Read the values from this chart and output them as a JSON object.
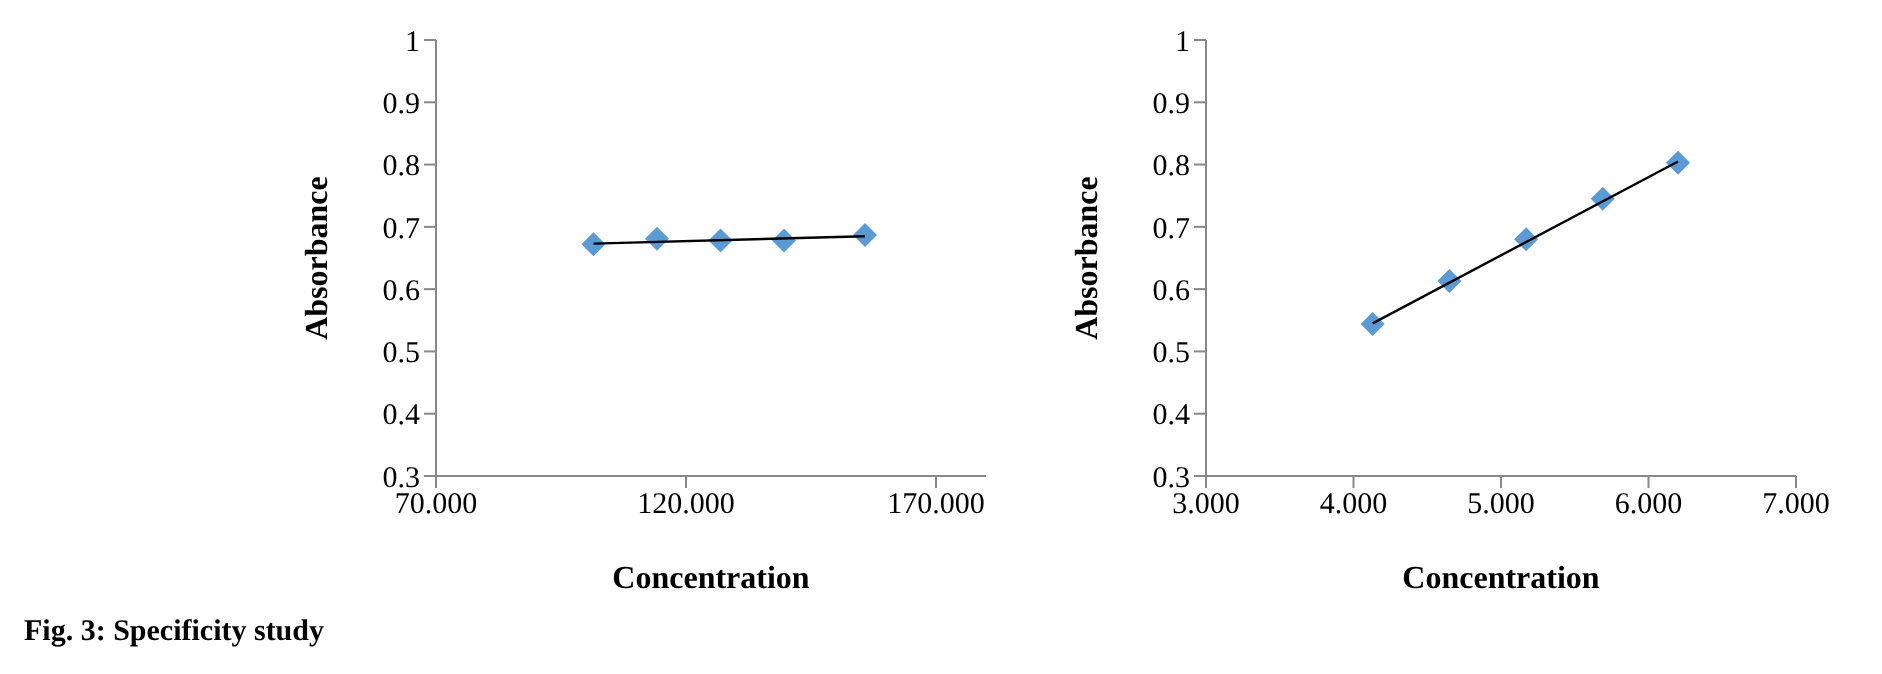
{
  "chart_data": [
    {
      "type": "scatter",
      "xlabel": "Concentration",
      "ylabel": "Absorbance",
      "marker": "diamond",
      "grid": false,
      "legend": false,
      "x": [
        101.5,
        114.2,
        126.9,
        139.6,
        155.8
      ],
      "series": [
        {
          "color": "#5b9bd5",
          "values": [
            0.672,
            0.681,
            0.678,
            0.678,
            0.687
          ]
        },
        {
          "type": "line",
          "color": "#000000",
          "x": [
            101.5,
            155.8
          ],
          "values": [
            0.673,
            0.685
          ],
          "marker": "none"
        }
      ],
      "xlim": [
        70,
        180
      ],
      "xticks": [
        {
          "value": 70,
          "label": "70.000"
        },
        {
          "value": 120,
          "label": "120.000"
        },
        {
          "value": 170,
          "label": "170.000"
        }
      ],
      "ylim": [
        0.3,
        1
      ],
      "yticks": [
        0.3,
        0.4,
        0.5,
        0.6,
        0.7,
        0.8,
        0.9,
        1
      ],
      "annotations": [
        "Fig. 3: Specificity study"
      ]
    },
    {
      "type": "scatter",
      "xlabel": "Concentration",
      "ylabel": "Absorbance",
      "marker": "diamond",
      "grid": false,
      "legend": false,
      "x": [
        4.13,
        4.65,
        5.17,
        5.69,
        6.2
      ],
      "series": [
        {
          "color": "#5b9bd5",
          "values": [
            0.544,
            0.613,
            0.68,
            0.745,
            0.803
          ]
        },
        {
          "type": "line",
          "color": "#000000",
          "x": [
            4.13,
            6.2
          ],
          "values": [
            0.545,
            0.805
          ],
          "marker": "none"
        }
      ],
      "xlim": [
        3,
        7
      ],
      "xticks": [
        {
          "value": 3,
          "label": "3.000"
        },
        {
          "value": 4,
          "label": "4.000"
        },
        {
          "value": 5,
          "label": "5.000"
        },
        {
          "value": 6,
          "label": "6.000"
        },
        {
          "value": 7,
          "label": "7.000"
        }
      ],
      "ylim": [
        0.3,
        1
      ],
      "yticks": [
        0.3,
        0.4,
        0.5,
        0.6,
        0.7,
        0.8,
        0.9,
        1
      ]
    }
  ]
}
